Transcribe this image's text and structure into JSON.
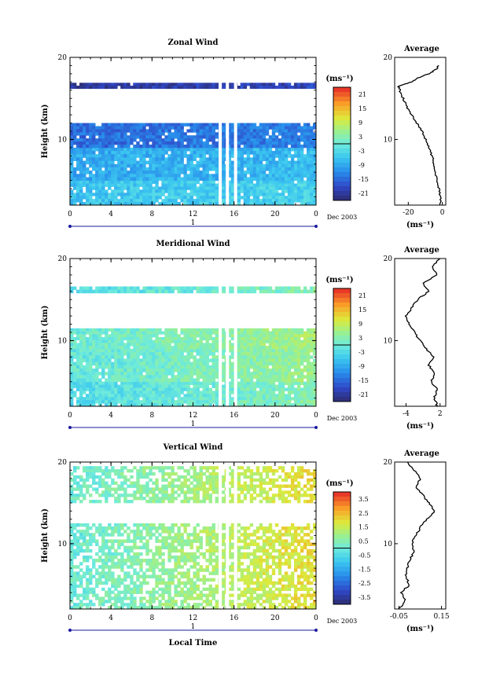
{
  "chart_data": [
    {
      "type": "heatmap",
      "title": "Zonal Wind",
      "ylabel": "Height (km)",
      "yticks": [
        "10",
        "20"
      ],
      "ylim": [
        2,
        20
      ],
      "xticks": [
        "0",
        "4",
        "8",
        "12",
        "16",
        "20",
        "0"
      ],
      "xlim": [
        0,
        24
      ],
      "date_label": "Dec 2003",
      "day_label": "1",
      "colorbar": {
        "unit": "(ms⁻¹)",
        "ticks": [
          "21",
          "15",
          "9",
          "3",
          "-3",
          "-9",
          "-15",
          "-21"
        ],
        "range": [
          -24,
          24
        ]
      },
      "layers": [
        {
          "h": [
            2,
            5
          ],
          "v": -6
        },
        {
          "h": [
            5,
            9
          ],
          "v": -9
        },
        {
          "h": [
            9,
            12
          ],
          "v": -15
        },
        {
          "h": [
            16.2,
            16.9
          ],
          "v": -21
        }
      ],
      "profile": {
        "title": "Average",
        "xlabel": "(ms⁻¹)",
        "xticks": [
          "-20",
          "0"
        ],
        "xlim": [
          -28,
          2
        ],
        "yticks": [
          "10",
          "20"
        ],
        "height": [
          2,
          3,
          4,
          5,
          6,
          7,
          8,
          9,
          10,
          11,
          12,
          13,
          14,
          15,
          16,
          16.5,
          17,
          17.5,
          18,
          18.5,
          19
        ],
        "value": [
          -1,
          -1,
          -2,
          -3,
          -4,
          -5,
          -6,
          -8,
          -10,
          -12,
          -15,
          -18,
          -21,
          -23,
          -25,
          -26,
          -18,
          -14,
          -8,
          -4,
          -2
        ]
      }
    },
    {
      "type": "heatmap",
      "title": "Meridional Wind",
      "ylabel": "Height (km)",
      "yticks": [
        "10",
        "20"
      ],
      "ylim": [
        2,
        20
      ],
      "xticks": [
        "0",
        "4",
        "8",
        "12",
        "16",
        "20",
        "0"
      ],
      "xlim": [
        0,
        24
      ],
      "date_label": "Dec 2003",
      "day_label": "1",
      "colorbar": {
        "unit": "(ms⁻¹)",
        "ticks": [
          "21",
          "15",
          "9",
          "3",
          "-3",
          "-9",
          "-15",
          "-21"
        ],
        "range": [
          -24,
          24
        ]
      },
      "layers": [
        {
          "h": [
            2,
            5
          ],
          "v": -3
        },
        {
          "h": [
            5,
            9
          ],
          "v": -1
        },
        {
          "h": [
            9,
            11.5
          ],
          "v": 0
        },
        {
          "h": [
            15.8,
            16.6
          ],
          "v": -3
        }
      ],
      "profile": {
        "title": "Average",
        "xlabel": "(ms⁻¹)",
        "xticks": [
          "-4",
          "2"
        ],
        "xlim": [
          -6,
          3
        ],
        "yticks": [
          "10",
          "20"
        ],
        "height": [
          2,
          3,
          4,
          5,
          6,
          7,
          8,
          9,
          10,
          11,
          12,
          13,
          14,
          15,
          16,
          17,
          18,
          19,
          20
        ],
        "value": [
          1.5,
          1.0,
          1.5,
          0.5,
          1.0,
          0.0,
          1.0,
          -0.5,
          -1.5,
          -2.5,
          -3.5,
          -4.0,
          -3.0,
          -2.0,
          0.0,
          -1.0,
          1.5,
          0.5,
          2.0
        ]
      }
    },
    {
      "type": "heatmap",
      "title": "Vertical Wind",
      "ylabel": "Height (km)",
      "yticks": [
        "10",
        "20"
      ],
      "ylim": [
        2,
        20
      ],
      "xticks": [
        "0",
        "4",
        "8",
        "12",
        "16",
        "20",
        "0"
      ],
      "xlim": [
        0,
        24
      ],
      "xlabel": "Local Time",
      "date_label": "Dec 2003",
      "day_label": "1",
      "colorbar": {
        "unit": "(ms⁻¹)",
        "ticks": [
          "3.5",
          "2.5",
          "1.5",
          "0.5",
          "-0.5",
          "-1.5",
          "-2.5",
          "-3.5"
        ],
        "range": [
          -4,
          4
        ]
      },
      "layers": [
        {
          "h": [
            2,
            5
          ],
          "v": 0
        },
        {
          "h": [
            5,
            12.5
          ],
          "v": 0
        },
        {
          "h": [
            15,
            19.5
          ],
          "v": 0
        }
      ],
      "profile": {
        "title": "Average",
        "xlabel": "(ms⁻¹)",
        "xticks": [
          "-0.05",
          "0.15"
        ],
        "xlim": [
          -0.07,
          0.17
        ],
        "yticks": [
          "10",
          "20"
        ],
        "height": [
          2,
          3,
          4,
          5,
          6,
          7,
          8,
          9,
          10,
          11,
          12,
          13,
          14,
          15,
          16,
          17,
          18,
          19,
          20
        ],
        "value": [
          -0.05,
          -0.02,
          -0.04,
          0.0,
          -0.02,
          -0.01,
          0.0,
          0.02,
          0.01,
          0.03,
          0.05,
          0.08,
          0.12,
          0.09,
          0.06,
          0.03,
          0.05,
          0.02,
          -0.01
        ]
      }
    }
  ]
}
